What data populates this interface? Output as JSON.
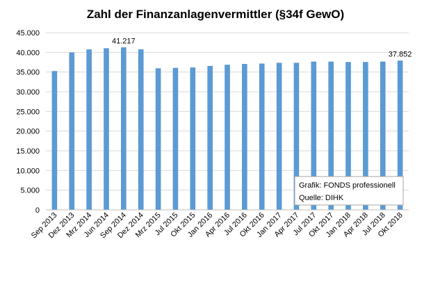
{
  "chart_data": {
    "type": "bar",
    "title": "Zahl der Finanzanlagenvermittler  (§34f GewO)",
    "xlabel": "",
    "ylabel": "",
    "ylim": [
      0,
      45000
    ],
    "yticks": [
      "0",
      "5.000",
      "10.000",
      "15.000",
      "20.000",
      "25.000",
      "30.000",
      "35.000",
      "40.000",
      "45.000"
    ],
    "grid": true,
    "categories": [
      "Sep 2013",
      "Dez 2013",
      "Mrz 2014",
      "Jun 2014",
      "Sep 2014",
      "Dez 2014",
      "Mrz 2015",
      "Jul 2015",
      "Okt 2015",
      "Jan 2016",
      "Apr 2016",
      "Jul 2016",
      "Okt 2016",
      "Jan 2017",
      "Apr 2017",
      "Jul 2017",
      "Okt 2017",
      "Jan 2018",
      "Apr 2018",
      "Jul 2018",
      "Okt 2018"
    ],
    "values": [
      35200,
      39900,
      40700,
      41000,
      41217,
      40700,
      35900,
      36000,
      36100,
      36500,
      36800,
      37000,
      37100,
      37300,
      37300,
      37600,
      37600,
      37500,
      37500,
      37600,
      37852
    ],
    "data_labels": [
      {
        "index": 4,
        "text": "41.217"
      },
      {
        "index": 20,
        "text": "37.852"
      }
    ],
    "bar_color": "#5b9bd5",
    "source": {
      "line1": "Grafik: FONDS professionell",
      "line2": "Quelle: DIHK"
    }
  }
}
